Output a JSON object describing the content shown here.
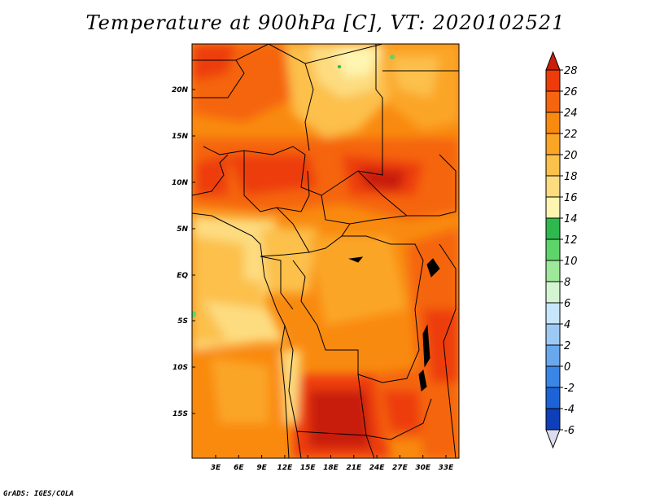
{
  "title": "Temperature at 900hPa [C], VT: 2020102521",
  "credit": "GrADS: IGES/COLA",
  "map": {
    "lat_ticks": [
      "20N",
      "15N",
      "10N",
      "5N",
      "EQ",
      "5S",
      "10S",
      "15S"
    ],
    "lon_ticks": [
      "3E",
      "6E",
      "9E",
      "12E",
      "15E",
      "18E",
      "21E",
      "24E",
      "27E",
      "30E",
      "33E"
    ]
  },
  "colorbar": {
    "levels": [
      "28",
      "26",
      "24",
      "22",
      "20",
      "18",
      "16",
      "14",
      "12",
      "10",
      "8",
      "6",
      "4",
      "2",
      "0",
      "-2",
      "-4",
      "-6"
    ],
    "colors": [
      "#ed3c0a",
      "#f5650f",
      "#f98a10",
      "#fba527",
      "#fcc04c",
      "#fddc80",
      "#fef5b0",
      "#2fb84d",
      "#5fd46b",
      "#9ee899",
      "#d4f5d1",
      "#c8e6fb",
      "#9ccaf5",
      "#6aa8ee",
      "#3a86e6",
      "#1d63d8",
      "#0e3fb8",
      "#0a1f8a",
      "#081460"
    ],
    "top_color": "#c81e0a",
    "bottom_color": "#dcdcf0"
  }
}
